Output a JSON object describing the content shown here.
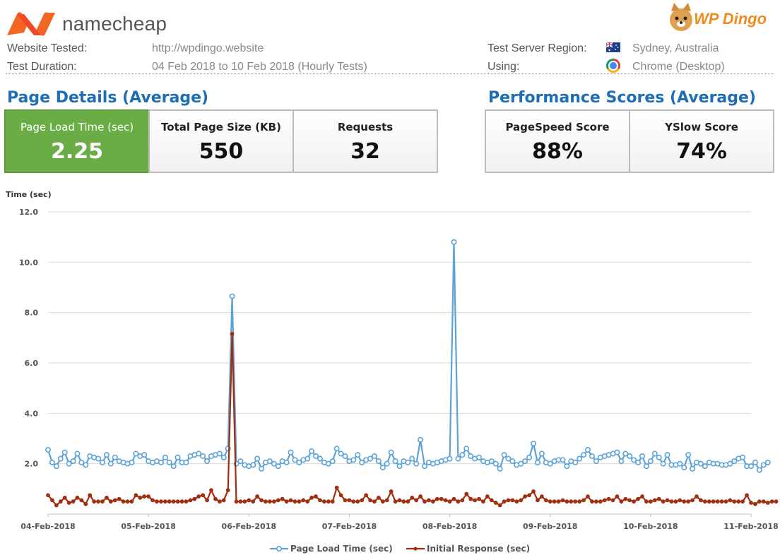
{
  "header": {
    "brand": "namecheap",
    "partner": "WP Dingo",
    "website_label": "Website Tested:",
    "website_value": "http://wpdingo.website",
    "duration_label": "Test Duration:",
    "duration_value": "04 Feb 2018 to 10 Feb 2018 (Hourly Tests)",
    "region_label": "Test Server Region:",
    "region_value": "Sydney, Australia",
    "using_label": "Using:",
    "using_value": "Chrome (Desktop)",
    "icons": [
      "namecheap-logo",
      "wpdingo-logo",
      "australia-flag-icon",
      "chrome-icon"
    ]
  },
  "page_details": {
    "title": "Page Details (Average)",
    "cards": [
      {
        "label": "Page Load Time (sec)",
        "value": "2.25",
        "color": "#6aac46"
      },
      {
        "label": "Total Page Size (KB)",
        "value": "550"
      },
      {
        "label": "Requests",
        "value": "32"
      }
    ]
  },
  "performance": {
    "title": "Performance Scores (Average)",
    "cards": [
      {
        "label": "PageSpeed Score",
        "value": "88%"
      },
      {
        "label": "YSlow Score",
        "value": "74%"
      }
    ]
  },
  "chart_data": {
    "type": "line",
    "title": "",
    "ylabel": "Time (sec)",
    "xlabel": "",
    "ylim": [
      0,
      12
    ],
    "yticks": [
      "12.0",
      "10.0",
      "8.0",
      "6.0",
      "4.0",
      "2.0"
    ],
    "xtick_labels": [
      "04-Feb-2018",
      "05-Feb-2018",
      "06-Feb-2018",
      "07-Feb-2018",
      "08-Feb-2018",
      "09-Feb-2018",
      "10-Feb-2018",
      "11-Feb-2018"
    ],
    "x_start": "04-Feb-2018 00:00",
    "x_end": "11-Feb-2018 00:00",
    "interval": "hourly",
    "grid": true,
    "legend": "bottom",
    "series": [
      {
        "name": "Page Load Time (sec)",
        "color": "#5ba3d9",
        "values": [
          2.55,
          2.05,
          1.9,
          2.2,
          2.45,
          2.0,
          2.1,
          2.4,
          2.05,
          1.95,
          2.3,
          2.25,
          2.2,
          2.05,
          2.35,
          2.0,
          2.25,
          2.1,
          2.05,
          2.0,
          2.05,
          2.4,
          2.3,
          2.35,
          2.1,
          2.05,
          2.1,
          2.05,
          2.25,
          2.05,
          1.9,
          2.25,
          2.05,
          2.05,
          2.3,
          2.35,
          2.4,
          2.3,
          2.1,
          2.3,
          2.35,
          2.4,
          2.25,
          2.6,
          8.65,
          2.0,
          2.1,
          1.95,
          1.9,
          1.95,
          2.2,
          1.8,
          2.05,
          2.1,
          2.0,
          1.9,
          2.1,
          2.05,
          2.45,
          2.15,
          2.05,
          2.15,
          2.2,
          2.5,
          2.3,
          2.2,
          2.05,
          2.0,
          2.1,
          2.6,
          2.4,
          2.3,
          2.1,
          2.15,
          2.35,
          2.05,
          2.15,
          2.2,
          2.3,
          2.1,
          1.85,
          2.0,
          2.45,
          2.1,
          1.9,
          2.1,
          2.05,
          2.2,
          2.0,
          2.95,
          1.9,
          2.05,
          2.0,
          2.05,
          2.1,
          2.15,
          2.2,
          10.8,
          2.2,
          2.35,
          2.6,
          2.3,
          2.2,
          2.25,
          2.1,
          2.05,
          2.1,
          2.0,
          1.8,
          2.35,
          2.2,
          2.1,
          1.95,
          2.0,
          2.1,
          2.25,
          2.8,
          2.05,
          2.4,
          2.05,
          2.0,
          2.1,
          2.15,
          2.15,
          1.9,
          2.1,
          2.05,
          2.2,
          2.35,
          2.55,
          2.3,
          2.1,
          2.25,
          2.3,
          2.35,
          2.4,
          2.45,
          2.1,
          2.4,
          2.3,
          2.15,
          2.05,
          2.3,
          1.9,
          2.1,
          2.4,
          2.25,
          2.0,
          2.35,
          1.95,
          1.95,
          2.0,
          1.85,
          2.35,
          1.8,
          2.05,
          2.0,
          1.9,
          2.05,
          2.0,
          2.0,
          1.95,
          1.95,
          2.0,
          2.1,
          2.2,
          2.25,
          1.9,
          1.9,
          2.05,
          1.75,
          1.95,
          2.05
        ]
      },
      {
        "name": "Initial Response (sec)",
        "color": "#a12e10",
        "values": [
          0.75,
          0.55,
          0.35,
          0.5,
          0.65,
          0.45,
          0.5,
          0.65,
          0.55,
          0.4,
          0.75,
          0.5,
          0.5,
          0.5,
          0.65,
          0.5,
          0.55,
          0.6,
          0.5,
          0.5,
          0.5,
          0.75,
          0.65,
          0.7,
          0.7,
          0.55,
          0.5,
          0.5,
          0.5,
          0.5,
          0.5,
          0.5,
          0.5,
          0.5,
          0.55,
          0.6,
          0.7,
          0.75,
          0.55,
          0.95,
          0.6,
          0.5,
          0.55,
          0.95,
          7.15,
          0.5,
          0.5,
          0.5,
          0.55,
          0.5,
          0.7,
          0.55,
          0.5,
          0.5,
          0.5,
          0.55,
          0.6,
          0.5,
          0.55,
          0.5,
          0.5,
          0.55,
          0.5,
          0.65,
          0.7,
          0.55,
          0.5,
          0.5,
          0.5,
          1.05,
          0.75,
          0.55,
          0.55,
          0.5,
          0.5,
          0.55,
          0.75,
          0.55,
          0.5,
          0.65,
          0.5,
          0.55,
          0.9,
          0.5,
          0.55,
          0.5,
          0.5,
          0.65,
          0.55,
          0.7,
          0.5,
          0.55,
          0.5,
          0.6,
          0.6,
          0.55,
          0.5,
          0.6,
          0.5,
          0.55,
          0.8,
          0.6,
          0.55,
          0.6,
          0.5,
          0.7,
          0.55,
          0.45,
          0.35,
          0.5,
          0.55,
          0.55,
          0.5,
          0.55,
          0.7,
          0.75,
          0.9,
          0.55,
          0.7,
          0.55,
          0.5,
          0.5,
          0.5,
          0.55,
          0.5,
          0.5,
          0.5,
          0.5,
          0.55,
          0.7,
          0.5,
          0.5,
          0.5,
          0.55,
          0.6,
          0.55,
          0.7,
          0.5,
          0.6,
          0.55,
          0.5,
          0.6,
          0.7,
          0.5,
          0.5,
          0.55,
          0.6,
          0.5,
          0.55,
          0.5,
          0.5,
          0.55,
          0.5,
          0.5,
          0.55,
          0.7,
          0.55,
          0.5,
          0.5,
          0.5,
          0.5,
          0.5,
          0.5,
          0.55,
          0.5,
          0.5,
          0.5,
          0.75,
          0.45,
          0.4,
          0.5,
          0.5,
          0.45,
          0.5,
          0.5
        ]
      }
    ]
  }
}
